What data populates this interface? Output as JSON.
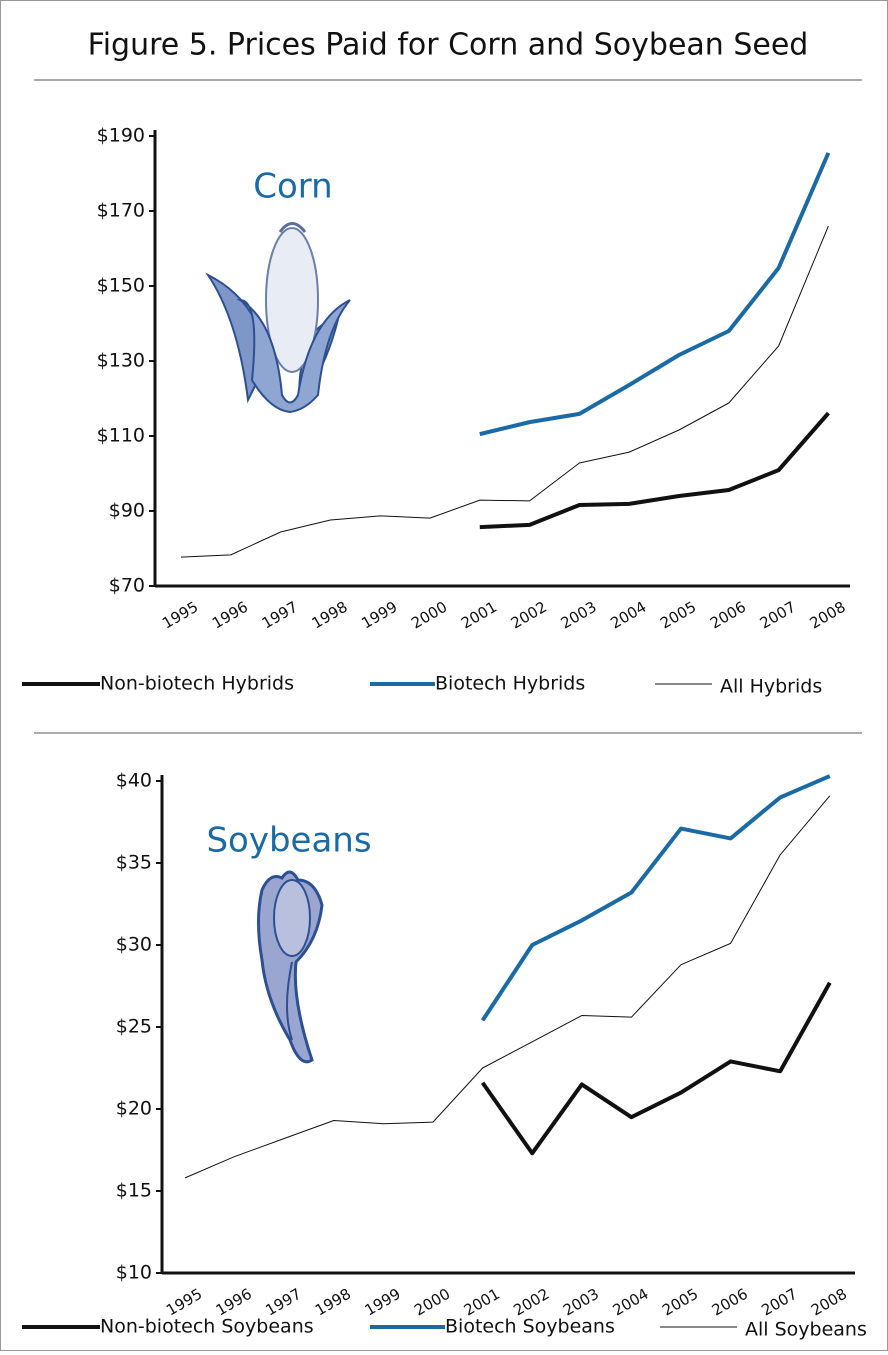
{
  "title": "Figure 5. Prices Paid for Corn and Soybean Seed",
  "chart_data": [
    {
      "type": "line",
      "annotation": "Corn",
      "annotation_color": "#1a6aa5",
      "categories": [
        "1995",
        "1996",
        "1997",
        "1998",
        "1999",
        "2000",
        "2001",
        "2002",
        "2003",
        "2004",
        "2005",
        "2006",
        "2007",
        "2008"
      ],
      "series": [
        {
          "name": "Non-biotech Hybrids",
          "color": "#111111",
          "linewidth": 4,
          "values": [
            null,
            null,
            null,
            null,
            null,
            null,
            85.7,
            86.3,
            91.6,
            91.9,
            94,
            95.6,
            100.9,
            116.1
          ]
        },
        {
          "name": "Biotech Hybrids",
          "color": "#1a6aa5",
          "linewidth": 4,
          "values": [
            null,
            null,
            null,
            null,
            null,
            null,
            110.5,
            113.7,
            115.9,
            123.6,
            131.6,
            138,
            154.8,
            185.5
          ]
        },
        {
          "name": "All Hybrids",
          "color": "#111111",
          "linewidth": 1,
          "values": [
            77.7,
            78.3,
            84.4,
            87.6,
            88.7,
            88.1,
            92.9,
            92.7,
            102.8,
            105.7,
            111.6,
            118.8,
            134,
            166
          ]
        }
      ],
      "ylim": [
        70,
        190
      ],
      "yticks": [
        {
          "value": 70,
          "label": "$70"
        },
        {
          "value": 90,
          "label": "$90"
        },
        {
          "value": 110,
          "label": "$110"
        },
        {
          "value": 130,
          "label": "$130"
        },
        {
          "value": 150,
          "label": "$150"
        },
        {
          "value": 170,
          "label": "$170"
        },
        {
          "value": 190,
          "label": "$190"
        }
      ],
      "grid": false
    },
    {
      "type": "line",
      "annotation": "Soybeans",
      "annotation_color": "#1a6aa5",
      "categories": [
        "1995",
        "1996",
        "1997",
        "1998",
        "1999",
        "2000",
        "2001",
        "2002",
        "2003",
        "2004",
        "2005",
        "2006",
        "2007",
        "2008"
      ],
      "series": [
        {
          "name": "Non-biotech Soybeans",
          "color": "#111111",
          "linewidth": 4,
          "values": [
            null,
            null,
            null,
            null,
            null,
            null,
            21.6,
            17.3,
            21.5,
            19.5,
            21,
            22.9,
            22.3,
            27.7
          ]
        },
        {
          "name": "Biotech Soybeans",
          "color": "#1a6aa5",
          "linewidth": 4,
          "values": [
            null,
            null,
            null,
            null,
            null,
            null,
            25.4,
            30,
            31.5,
            33.2,
            37.1,
            36.5,
            39,
            40.3
          ]
        },
        {
          "name": "All Soybeans",
          "color": "#111111",
          "linewidth": 1,
          "values": [
            15.8,
            17.1,
            18.2,
            19.3,
            19.1,
            19.2,
            22.5,
            24.1,
            25.7,
            25.6,
            28.8,
            30.1,
            35.5,
            39.1
          ]
        }
      ],
      "ylim": [
        10,
        40
      ],
      "yticks": [
        {
          "value": 10,
          "label": "$10"
        },
        {
          "value": 15,
          "label": "$15"
        },
        {
          "value": 20,
          "label": "$20"
        },
        {
          "value": 25,
          "label": "$25"
        },
        {
          "value": 30,
          "label": "$30"
        },
        {
          "value": 35,
          "label": "$35"
        },
        {
          "value": 40,
          "label": "$40"
        }
      ],
      "grid": false
    }
  ]
}
